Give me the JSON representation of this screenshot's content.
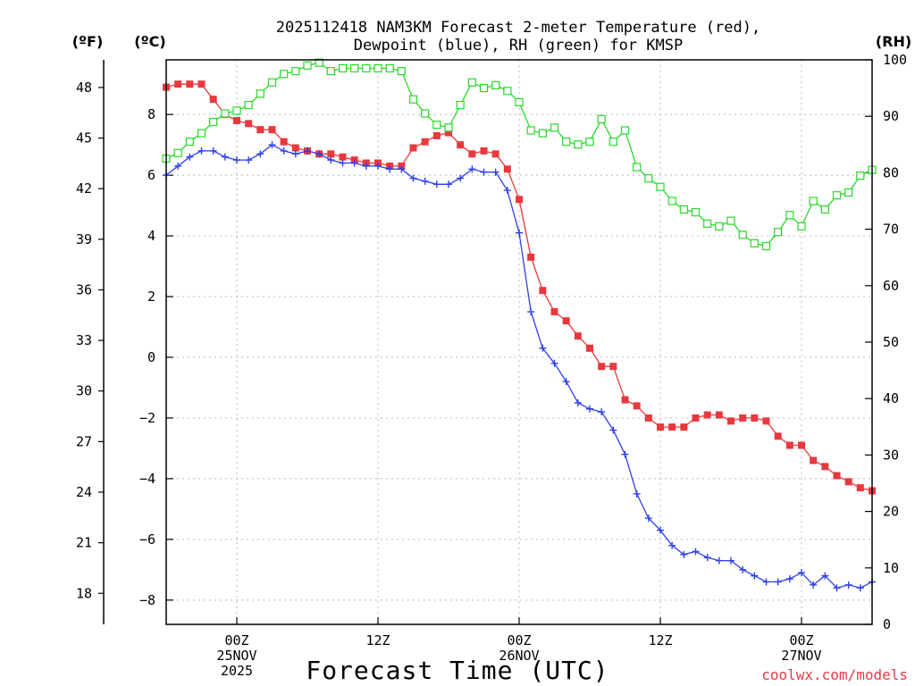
{
  "chart_data": {
    "type": "line",
    "title_line1": "2025112418 NAM3KM Forecast 2-meter Temperature (red),",
    "title_line2": "Dewpoint (blue), RH (green) for KMSP",
    "xlabel": "Forecast Time (UTC)",
    "credit": "coolwx.com/models",
    "units": {
      "fahrenheit": "(ºF)",
      "celsius": "(ºC)",
      "rh": "(RH)"
    },
    "x_range_hours": [
      0,
      60
    ],
    "celsius_axis": {
      "min": -8.8,
      "max": 9.8,
      "ticks": [
        "8",
        "6",
        "4",
        "2",
        "0",
        "−2",
        "−4",
        "−6",
        "−8"
      ],
      "tick_values": [
        8,
        6,
        4,
        2,
        0,
        -2,
        -4,
        -6,
        -8
      ]
    },
    "fahrenheit_axis": {
      "ticks": [
        "48",
        "45",
        "42",
        "39",
        "36",
        "33",
        "30",
        "27",
        "24",
        "21",
        "18"
      ],
      "tick_values": [
        48,
        45,
        42,
        39,
        36,
        33,
        30,
        27,
        24,
        21,
        18
      ]
    },
    "rh_axis": {
      "min": 0,
      "max": 100,
      "ticks": [
        "100",
        "90",
        "80",
        "70",
        "60",
        "50",
        "40",
        "30",
        "20",
        "10",
        "0"
      ],
      "tick_values": [
        100,
        90,
        80,
        70,
        60,
        50,
        40,
        30,
        20,
        10,
        0
      ]
    },
    "x_ticks": [
      {
        "hour": 6,
        "lines": [
          "00Z",
          "25NOV",
          "2025"
        ]
      },
      {
        "hour": 18,
        "lines": [
          "12Z"
        ]
      },
      {
        "hour": 30,
        "lines": [
          "00Z",
          "26NOV"
        ]
      },
      {
        "hour": 42,
        "lines": [
          "12Z"
        ]
      },
      {
        "hour": 54,
        "lines": [
          "00Z",
          "27NOV"
        ]
      }
    ],
    "hours": [
      0,
      1,
      2,
      3,
      4,
      5,
      6,
      7,
      8,
      9,
      10,
      11,
      12,
      13,
      14,
      15,
      16,
      17,
      18,
      19,
      20,
      21,
      22,
      23,
      24,
      25,
      26,
      27,
      28,
      29,
      30,
      31,
      32,
      33,
      34,
      35,
      36,
      37,
      38,
      39,
      40,
      41,
      42,
      43,
      44,
      45,
      46,
      47,
      48,
      49,
      50,
      51,
      52,
      53,
      54,
      55,
      56,
      57,
      58,
      59,
      60
    ],
    "series": [
      {
        "name": "2-meter Temperature",
        "color": "#e8383e",
        "marker": "filled-square",
        "values": [
          8.9,
          9.0,
          9.0,
          9.0,
          8.5,
          8.0,
          7.8,
          7.7,
          7.5,
          7.5,
          7.1,
          6.9,
          6.8,
          6.7,
          6.7,
          6.6,
          6.5,
          6.4,
          6.4,
          6.3,
          6.3,
          6.9,
          7.1,
          7.3,
          7.4,
          7.0,
          6.7,
          6.8,
          6.7,
          6.2,
          5.2,
          3.3,
          2.2,
          1.5,
          1.2,
          0.7,
          0.3,
          -0.3,
          -0.3,
          -1.4,
          -1.6,
          -2.0,
          -2.3,
          -2.3,
          -2.3,
          -2.0,
          -1.9,
          -1.9,
          -2.1,
          -2.0,
          -2.0,
          -2.1,
          -2.6,
          -2.9,
          -2.9,
          -3.4,
          -3.6,
          -3.9,
          -4.1,
          -4.3,
          -4.4
        ]
      },
      {
        "name": "Dewpoint",
        "color": "#2f3fe8",
        "marker": "plus",
        "values": [
          6.0,
          6.3,
          6.6,
          6.8,
          6.8,
          6.6,
          6.5,
          6.5,
          6.7,
          7.0,
          6.8,
          6.7,
          6.8,
          6.7,
          6.5,
          6.4,
          6.4,
          6.3,
          6.3,
          6.2,
          6.2,
          5.9,
          5.8,
          5.7,
          5.7,
          5.9,
          6.2,
          6.1,
          6.1,
          5.5,
          4.1,
          1.5,
          0.3,
          -0.2,
          -0.8,
          -1.5,
          -1.7,
          -1.8,
          -2.4,
          -3.2,
          -4.5,
          -5.3,
          -5.7,
          -6.2,
          -6.5,
          -6.4,
          -6.6,
          -6.7,
          -6.7,
          -7.0,
          -7.2,
          -7.4,
          -7.4,
          -7.3,
          -7.1,
          -7.5,
          -7.2,
          -7.6,
          -7.5,
          -7.6,
          -7.4
        ]
      },
      {
        "name": "RH",
        "color": "#2ad82a",
        "marker": "open-square",
        "axis": "rh",
        "values": [
          82.5,
          83.5,
          85.5,
          87.0,
          89.0,
          90.5,
          91.0,
          92.0,
          94.0,
          96.0,
          97.5,
          98.0,
          99.0,
          99.5,
          98.0,
          98.5,
          98.5,
          98.5,
          98.5,
          98.5,
          98.0,
          93.0,
          90.5,
          88.5,
          88.0,
          92.0,
          96.0,
          95.0,
          95.5,
          94.5,
          92.5,
          87.5,
          87.0,
          88.0,
          85.5,
          85.0,
          85.5,
          89.5,
          85.5,
          87.5,
          81.0,
          79.0,
          77.5,
          75.0,
          73.5,
          73.0,
          71.0,
          70.5,
          71.5,
          69.0,
          67.5,
          67.0,
          69.5,
          72.5,
          70.5,
          75.0,
          73.5,
          76.0,
          76.5,
          79.5,
          80.5
        ]
      }
    ]
  }
}
